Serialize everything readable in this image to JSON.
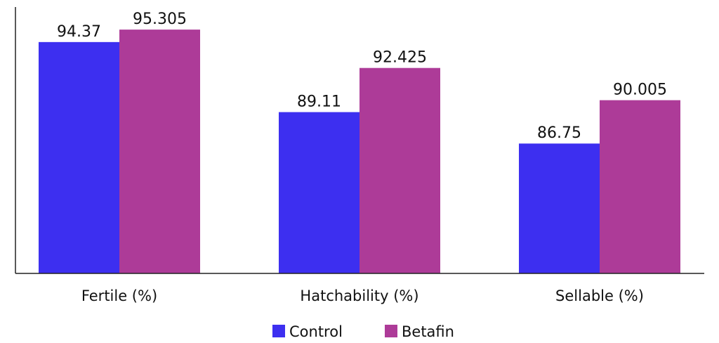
{
  "chart_data": {
    "type": "bar",
    "categories": [
      "Fertile (%)",
      "Hatchability (%)",
      "Sellable (%)"
    ],
    "series": [
      {
        "name": "Control",
        "values": [
          94.37,
          89.11,
          86.75
        ],
        "labels": [
          "94.37",
          "89.11",
          "86.75"
        ],
        "color": "#3d2ff0"
      },
      {
        "name": "Betafin",
        "values": [
          95.305,
          92.425,
          90.005
        ],
        "labels": [
          "95.305",
          "92.425",
          "90.005"
        ],
        "color": "#ad3b98"
      }
    ],
    "ylim": [
      77,
      97
    ],
    "grid": false,
    "legend_position": "bottom-center",
    "axis_color": "#222222"
  }
}
